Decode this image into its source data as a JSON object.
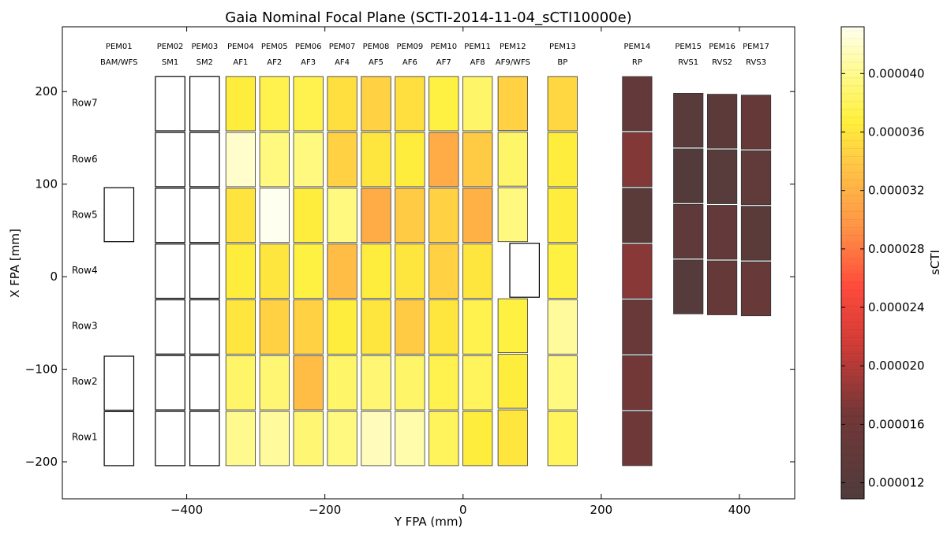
{
  "chart_data": {
    "type": "heatmap",
    "title": "Gaia Nominal Focal Plane (SCTI-2014-11-04_sCTI10000e)",
    "xlabel": "Y FPA (mm)",
    "ylabel": "X FPA [mm]",
    "xlim": [
      -580,
      480
    ],
    "ylim": [
      -240,
      270
    ],
    "xticks": [
      -400,
      -200,
      0,
      200,
      400
    ],
    "xtick_labels": [
      "−400",
      "−200",
      "0",
      "200",
      "400"
    ],
    "yticks": [
      -200,
      -100,
      0,
      100,
      200
    ],
    "ytick_labels": [
      "−200",
      "−100",
      "0",
      "100",
      "200"
    ],
    "grid": false,
    "colorbar": {
      "label": "sCTI",
      "range": [
        1.09e-05,
        4.32e-05
      ],
      "ticks": [
        1.2e-05,
        1.6e-05,
        2e-05,
        2.4e-05,
        2.8e-05,
        3.2e-05,
        3.6e-05,
        4e-05
      ],
      "tick_labels": [
        "0.000012",
        "0.000016",
        "0.000020",
        "0.000024",
        "0.000028",
        "0.000032",
        "0.000036",
        "0.000040"
      ]
    },
    "row_labels": [
      "Row7",
      "Row6",
      "Row5",
      "Row4",
      "Row3",
      "Row2",
      "Row1"
    ],
    "columns": [
      {
        "pem": "PEM01",
        "name": "BAM/WFS",
        "y": -498,
        "width": 45,
        "x_top": 97,
        "x_bottom": -205,
        "cells": [
          null,
          null,
          {
            "value": null,
            "x0": 37,
            "x1": 97
          },
          null,
          null,
          {
            "value": null,
            "x0": -145,
            "x1": -85
          },
          {
            "value": null,
            "x0": -205,
            "x1": -145
          }
        ]
      },
      {
        "pem": "PEM02",
        "name": "SM1",
        "y": -424,
        "width": 45,
        "x_top": 217,
        "x_bottom": -205,
        "values": [
          null,
          null,
          null,
          null,
          null,
          null,
          null
        ]
      },
      {
        "pem": "PEM03",
        "name": "SM2",
        "y": -374,
        "width": 45,
        "x_top": 217,
        "x_bottom": -205,
        "values": [
          null,
          null,
          null,
          null,
          null,
          null,
          null
        ]
      },
      {
        "pem": "PEM04",
        "name": "AF1",
        "y": -322,
        "width": 45,
        "x_top": 217,
        "x_bottom": -205,
        "values": [
          3.65e-05,
          4.2e-05,
          3.58e-05,
          3.65e-05,
          3.6e-05,
          3.85e-05,
          4e-05
        ]
      },
      {
        "pem": "PEM05",
        "name": "AF2",
        "y": -273,
        "width": 45,
        "x_top": 217,
        "x_bottom": -205,
        "values": [
          3.75e-05,
          3.95e-05,
          4.32e-05,
          3.6e-05,
          3.45e-05,
          3.9e-05,
          4.05e-05
        ]
      },
      {
        "pem": "PEM06",
        "name": "AF3",
        "y": -224,
        "width": 45,
        "x_top": 217,
        "x_bottom": -205,
        "values": [
          3.75e-05,
          3.95e-05,
          3.65e-05,
          3.7e-05,
          3.45e-05,
          3.3e-05,
          3.9e-05
        ]
      },
      {
        "pem": "PEM07",
        "name": "AF4",
        "y": -175,
        "width": 45,
        "x_top": 217,
        "x_bottom": -205,
        "values": [
          3.55e-05,
          3.45e-05,
          3.95e-05,
          3.3e-05,
          3.65e-05,
          3.85e-05,
          3.95e-05
        ]
      },
      {
        "pem": "PEM08",
        "name": "AF5",
        "y": -126,
        "width": 45,
        "x_top": 217,
        "x_bottom": -205,
        "values": [
          3.45e-05,
          3.6e-05,
          3.15e-05,
          3.65e-05,
          3.6e-05,
          3.9e-05,
          4.15e-05
        ]
      },
      {
        "pem": "PEM09",
        "name": "AF6",
        "y": -77,
        "width": 45,
        "x_top": 217,
        "x_bottom": -205,
        "values": [
          3.55e-05,
          3.65e-05,
          3.4e-05,
          3.6e-05,
          3.4e-05,
          3.85e-05,
          4.1e-05
        ]
      },
      {
        "pem": "PEM10",
        "name": "AF7",
        "y": -28,
        "width": 45,
        "x_top": 217,
        "x_bottom": -205,
        "values": [
          3.7e-05,
          3.15e-05,
          3.45e-05,
          3.45e-05,
          3.6e-05,
          3.75e-05,
          3.8e-05
        ]
      },
      {
        "pem": "PEM11",
        "name": "AF8",
        "y": 21,
        "width": 45,
        "x_top": 217,
        "x_bottom": -205,
        "values": [
          3.85e-05,
          3.4e-05,
          3.2e-05,
          3.6e-05,
          3.75e-05,
          3.8e-05,
          3.65e-05
        ]
      },
      {
        "pem": "PEM12",
        "name": "AF9/WFS",
        "y": 72,
        "width": 45,
        "x_top": 217,
        "x_bottom": -205,
        "cells": [
          {
            "value": 3.45e-05,
            "x0": 157,
            "x1": 217
          },
          {
            "value": 3.85e-05,
            "x0": 97,
            "x1": 157
          },
          {
            "value": 3.95e-05,
            "x0": 37,
            "x1": 97
          },
          {
            "value": null,
            "x0": -23,
            "x1": 37,
            "y": 89
          },
          {
            "value": 3.7e-05,
            "x0": -83,
            "x1": -23
          },
          {
            "value": 3.65e-05,
            "x0": -143,
            "x1": -83
          },
          {
            "value": 3.6e-05,
            "x0": -205,
            "x1": -143
          }
        ]
      },
      {
        "pem": "PEM13",
        "name": "BP",
        "y": 144,
        "width": 45,
        "x_top": 217,
        "x_bottom": -205,
        "values": [
          3.5e-05,
          3.65e-05,
          3.65e-05,
          3.7e-05,
          4.05e-05,
          3.95e-05,
          3.8e-05
        ]
      },
      {
        "pem": "PEM14",
        "name": "RP",
        "y": 252,
        "width": 45,
        "x_top": 217,
        "x_bottom": -205,
        "values": [
          1.42e-05,
          1.75e-05,
          1.28e-05,
          1.78e-05,
          1.5e-05,
          1.65e-05,
          1.6e-05
        ]
      },
      {
        "pem": "PEM15",
        "name": "RVS1",
        "y": 326,
        "width": 45,
        "x_top": 199,
        "x_bottom": -41,
        "values": [
          1.25e-05,
          1.15e-05,
          1.35e-05,
          1.18e-05
        ]
      },
      {
        "pem": "PEM16",
        "name": "RVS2",
        "y": 375,
        "width": 45,
        "x_top": 198,
        "x_bottom": -42,
        "values": [
          1.3e-05,
          1.22e-05,
          1.4e-05,
          1.45e-05
        ]
      },
      {
        "pem": "PEM17",
        "name": "RVS3",
        "y": 424,
        "width": 45,
        "x_top": 197,
        "x_bottom": -43,
        "values": [
          1.45e-05,
          1.38e-05,
          1.28e-05,
          1.48e-05
        ]
      }
    ]
  }
}
